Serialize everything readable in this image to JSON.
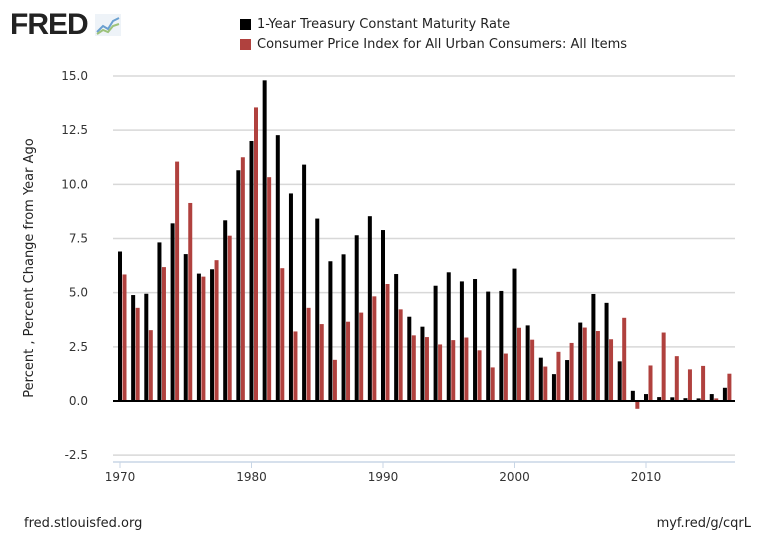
{
  "header": {
    "logo_text": "FRED",
    "logo_icon": "chart-line-icon"
  },
  "footer": {
    "source": "fred.stlouisfed.org",
    "short_link": "myf.red/g/cqrL"
  },
  "chart_data": {
    "type": "bar",
    "title": "",
    "xlabel": "",
    "ylabel": "Percent , Percent Change from Year Ago",
    "ylim": [
      -2.5,
      15
    ],
    "yticks": [
      "-2.5",
      "0.0",
      "2.5",
      "5.0",
      "7.5",
      "10.0",
      "12.5",
      "15.0"
    ],
    "xticks": [
      "1970",
      "1980",
      "1990",
      "2000",
      "2010"
    ],
    "grid": true,
    "legend_placement": "top",
    "categories": [
      1970,
      1971,
      1972,
      1973,
      1974,
      1975,
      1976,
      1977,
      1978,
      1979,
      1980,
      1981,
      1982,
      1983,
      1984,
      1985,
      1986,
      1987,
      1988,
      1989,
      1990,
      1991,
      1992,
      1993,
      1994,
      1995,
      1996,
      1997,
      1998,
      1999,
      2000,
      2001,
      2002,
      2003,
      2004,
      2005,
      2006,
      2007,
      2008,
      2009,
      2010,
      2011,
      2012,
      2013,
      2014,
      2015,
      2016
    ],
    "series": [
      {
        "name": "1-Year Treasury Constant Maturity Rate",
        "color": "#000000",
        "values": [
          6.9,
          4.89,
          4.95,
          7.32,
          8.2,
          6.78,
          5.88,
          6.08,
          8.34,
          10.65,
          12.0,
          14.8,
          12.27,
          9.58,
          10.91,
          8.42,
          6.45,
          6.77,
          7.65,
          8.53,
          7.89,
          5.86,
          3.89,
          3.43,
          5.32,
          5.94,
          5.52,
          5.63,
          5.05,
          5.08,
          6.11,
          3.49,
          2.0,
          1.24,
          1.89,
          3.62,
          4.94,
          4.53,
          1.83,
          0.47,
          0.32,
          0.18,
          0.17,
          0.13,
          0.12,
          0.32,
          0.61
        ]
      },
      {
        "name": "Consumer Price Index for All Urban Consumers: All Items",
        "color": "#b0413e",
        "values": [
          5.84,
          4.3,
          3.27,
          6.18,
          11.05,
          9.14,
          5.74,
          6.5,
          7.63,
          11.25,
          13.55,
          10.33,
          6.13,
          3.21,
          4.3,
          3.55,
          1.9,
          3.66,
          4.08,
          4.83,
          5.4,
          4.23,
          3.03,
          2.95,
          2.61,
          2.81,
          2.93,
          2.34,
          1.55,
          2.19,
          3.38,
          2.83,
          1.59,
          2.27,
          2.68,
          3.39,
          3.23,
          2.85,
          3.84,
          -0.36,
          1.64,
          3.16,
          2.07,
          1.46,
          1.62,
          0.12,
          1.26
        ]
      }
    ]
  }
}
